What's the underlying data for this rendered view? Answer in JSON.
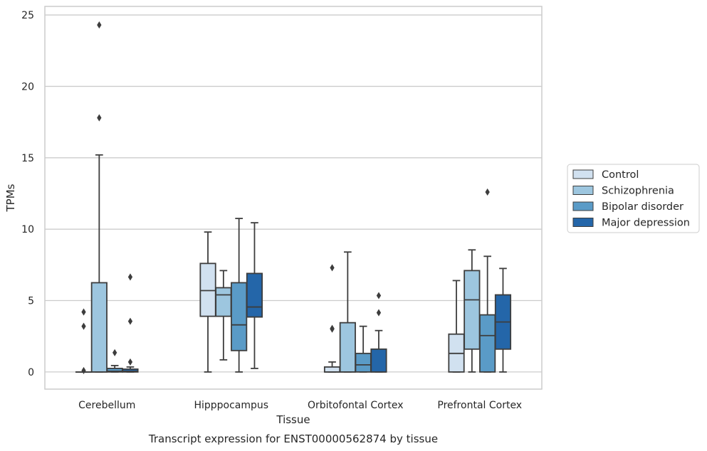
{
  "chart_data": {
    "type": "box",
    "title": "",
    "caption": "Transcript expression for ENST00000562874 by tissue",
    "xlabel": "Tissue",
    "ylabel": "TPMs",
    "ylim": [
      -1.2,
      25.6
    ],
    "yticks": [
      0,
      5,
      10,
      15,
      20,
      25
    ],
    "grid": "horizontal",
    "legend_position": "right",
    "categories": [
      "Cerebellum",
      "Hipppocampus",
      "Orbitofontal Cortex",
      "Prefrontal Cortex"
    ],
    "series": [
      {
        "name": "Control",
        "color": "#d1e1f0",
        "boxes": [
          {
            "whislo": 0,
            "q1": 0,
            "med": 0,
            "q3": 0,
            "whishi": 0,
            "fliers": [
              0.1,
              3.2,
              4.2
            ]
          },
          {
            "whislo": 0,
            "q1": 3.9,
            "med": 5.7,
            "q3": 7.6,
            "whishi": 9.8,
            "fliers": []
          },
          {
            "whislo": 0,
            "q1": 0,
            "med": 0,
            "q3": 0.35,
            "whishi": 0.7,
            "fliers": [
              3.0,
              3.05,
              7.3
            ]
          },
          {
            "whislo": 0,
            "q1": 0,
            "med": 1.3,
            "q3": 2.65,
            "whishi": 6.4,
            "fliers": []
          }
        ]
      },
      {
        "name": "Schizophrenia",
        "color": "#9dc6df",
        "boxes": [
          {
            "whislo": 0,
            "q1": 0,
            "med": 0,
            "q3": 6.25,
            "whishi": 15.2,
            "fliers": [
              17.8,
              24.3
            ]
          },
          {
            "whislo": 0.85,
            "q1": 3.9,
            "med": 5.4,
            "q3": 5.9,
            "whishi": 7.1,
            "fliers": []
          },
          {
            "whislo": 0,
            "q1": 0,
            "med": 0,
            "q3": 3.45,
            "whishi": 8.4,
            "fliers": []
          },
          {
            "whislo": 0,
            "q1": 1.6,
            "med": 5.05,
            "q3": 7.1,
            "whishi": 8.55,
            "fliers": []
          }
        ]
      },
      {
        "name": "Bipolar disorder",
        "color": "#5a9bc7",
        "boxes": [
          {
            "whislo": 0,
            "q1": 0,
            "med": 0.05,
            "q3": 0.25,
            "whishi": 0.45,
            "fliers": [
              1.35
            ]
          },
          {
            "whislo": 0,
            "q1": 1.5,
            "med": 3.3,
            "q3": 6.25,
            "whishi": 10.75,
            "fliers": []
          },
          {
            "whislo": 0,
            "q1": 0,
            "med": 0.5,
            "q3": 1.3,
            "whishi": 3.2,
            "fliers": []
          },
          {
            "whislo": 0,
            "q1": 0,
            "med": 2.55,
            "q3": 4.0,
            "whishi": 8.1,
            "fliers": [
              12.6
            ]
          }
        ]
      },
      {
        "name": "Major depression",
        "color": "#2466a9",
        "boxes": [
          {
            "whislo": 0,
            "q1": 0,
            "med": 0.05,
            "q3": 0.2,
            "whishi": 0.35,
            "fliers": [
              0.7,
              3.55,
              6.65
            ]
          },
          {
            "whislo": 0.25,
            "q1": 3.85,
            "med": 4.55,
            "q3": 6.9,
            "whishi": 10.45,
            "fliers": []
          },
          {
            "whislo": 0,
            "q1": 0,
            "med": 0,
            "q3": 1.6,
            "whishi": 2.9,
            "fliers": [
              4.15,
              5.35
            ]
          },
          {
            "whislo": 0,
            "q1": 1.6,
            "med": 3.5,
            "q3": 5.4,
            "whishi": 7.25,
            "fliers": []
          }
        ]
      }
    ]
  }
}
